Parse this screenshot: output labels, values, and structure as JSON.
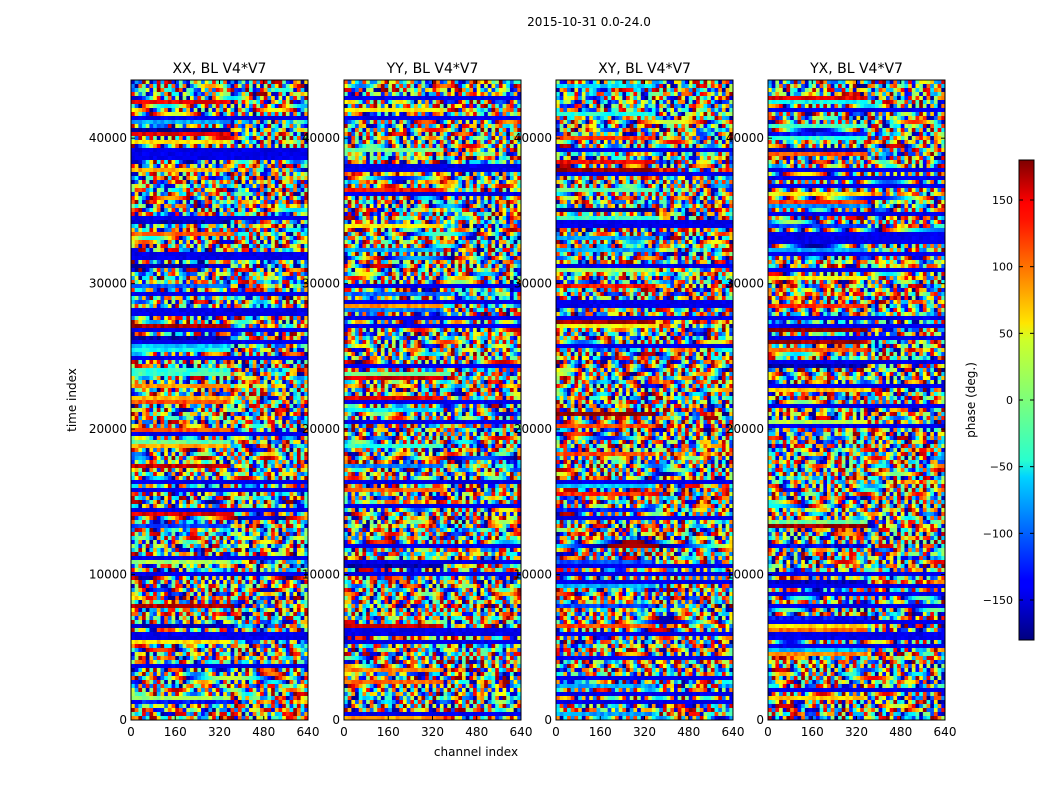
{
  "chart_data": {
    "type": "heatmap",
    "suptitle": "2015-10-31 0.0-24.0",
    "xlabel": "channel index",
    "ylabel": "time index",
    "xlim": [
      0,
      640
    ],
    "ylim": [
      0,
      44000
    ],
    "xticks": [
      0,
      160,
      320,
      480,
      640
    ],
    "yticks": [
      0,
      10000,
      20000,
      30000,
      40000
    ],
    "panels": [
      {
        "title": "XX, BL V4*V7",
        "pol": "XX"
      },
      {
        "title": "YY, BL V4*V7",
        "pol": "YY"
      },
      {
        "title": "XY, BL V4*V7",
        "pol": "XY"
      },
      {
        "title": "YX, BL V4*V7",
        "pol": "YX"
      }
    ],
    "colorbar": {
      "label": "phase (deg.)",
      "range": [
        -180,
        180
      ],
      "ticks": [
        -150,
        -100,
        -50,
        0,
        50,
        100,
        150
      ],
      "tick_labels": [
        "−150",
        "−100",
        "−50",
        "0",
        "50",
        "100",
        "150"
      ],
      "colormap": "jet"
    }
  }
}
